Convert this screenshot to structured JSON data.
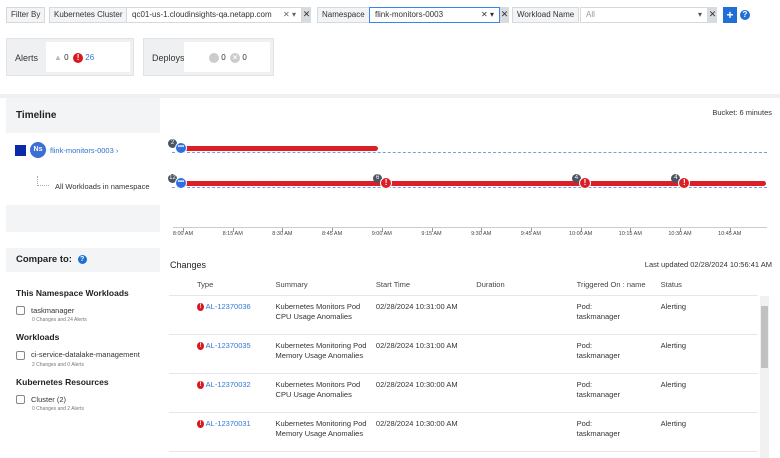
{
  "filter": {
    "label": "Filter By",
    "cluster_label": "Kubernetes Cluster",
    "cluster_value": "qc01-us-1.cloudinsights-qa.netapp.com",
    "namespace_label": "Namespace",
    "namespace_value": "flink-monitors-0003",
    "workload_label": "Workload Name",
    "workload_value": "All",
    "add": "+",
    "help": "?"
  },
  "summary": {
    "alerts_label": "Alerts",
    "warning_count": "0",
    "critical_count": "26",
    "deploys_label": "Deploys",
    "deploy_a": "0",
    "deploy_b": "0"
  },
  "timeline": {
    "title": "Timeline",
    "bucket": "Bucket: 6 minutes",
    "namespace_icon": "Ns",
    "namespace": "flink-monitors-0003",
    "chevron": "›",
    "child": "All Workloads in namespace",
    "ticks": [
      "8:00 AM",
      "8:15 AM",
      "8:30 AM",
      "8:45 AM",
      "9:00 AM",
      "9:15 AM",
      "9:30 AM",
      "9:45 AM",
      "10:00 AM",
      "10:15 AM",
      "10:30 AM",
      "10:45 AM"
    ],
    "rows": [
      {
        "bar": [
          "8:00",
          "8:59"
        ],
        "events": [
          {
            "time": "8:00",
            "count": "2",
            "kind": "more"
          }
        ]
      },
      {
        "bar": [
          "8:00",
          "10:56"
        ],
        "events": [
          {
            "time": "8:00",
            "count": "12",
            "kind": "more"
          },
          {
            "time": "9:01",
            "count": "6",
            "kind": "alert"
          },
          {
            "time": "10:01",
            "count": "4",
            "kind": "alert"
          },
          {
            "time": "10:31",
            "count": "4",
            "kind": "alert"
          }
        ]
      }
    ],
    "colors": {
      "bar": "#dc1f26",
      "more": "#2f6fe0",
      "axis_dash": "#7a9be0"
    }
  },
  "compare": {
    "title": "Compare to:",
    "groups": [
      {
        "title": "This Namespace Workloads",
        "items": [
          {
            "label": "taskmanager",
            "sub": "0 Changes and 24 Alerts"
          }
        ]
      },
      {
        "title": "Workloads",
        "items": [
          {
            "label": "ci-service-datalake-management",
            "sub": "2 Changes and 0 Alerts"
          }
        ]
      },
      {
        "title": "Kubernetes Resources",
        "items": [
          {
            "label": "Cluster (2)",
            "sub": "0 Changes and 2 Alerts"
          }
        ]
      }
    ]
  },
  "changes": {
    "title": "Changes",
    "updated": "Last updated 02/28/2024 10:56:41 AM",
    "columns": [
      "Type",
      "Summary",
      "Start Time",
      "Duration",
      "Triggered On : name",
      "Status"
    ],
    "rows": [
      {
        "id": "AL-12370036",
        "summary": "Kubernetes Monitors Pod CPU Usage Anomalies",
        "start": "02/28/2024 10:31:00 AM",
        "duration": "",
        "trigger": "Pod: taskmanager",
        "status": "Alerting"
      },
      {
        "id": "AL-12370035",
        "summary": "Kubernetes Monitoring Pod Memory Usage Anomalies",
        "start": "02/28/2024 10:31:00 AM",
        "duration": "",
        "trigger": "Pod: taskmanager",
        "status": "Alerting"
      },
      {
        "id": "AL-12370032",
        "summary": "Kubernetes Monitors Pod CPU Usage Anomalies",
        "start": "02/28/2024 10:30:00 AM",
        "duration": "",
        "trigger": "Pod: taskmanager",
        "status": "Alerting"
      },
      {
        "id": "AL-12370031",
        "summary": "Kubernetes Monitoring Pod Memory Usage Anomalies",
        "start": "02/28/2024 10:30:00 AM",
        "duration": "",
        "trigger": "Pod: taskmanager",
        "status": "Alerting"
      }
    ]
  }
}
